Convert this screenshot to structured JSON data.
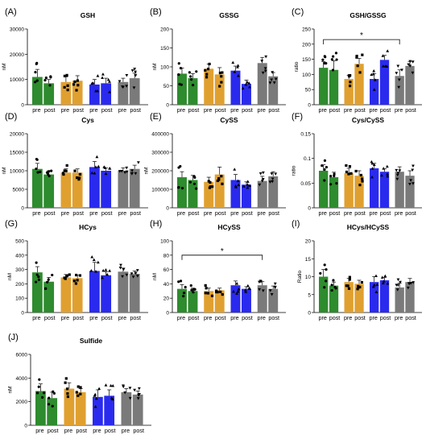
{
  "colors": {
    "green": "#2e8b2e",
    "orange": "#e0a030",
    "blue": "#2a2aee",
    "gray": "#7a7a7a",
    "point": "#000000"
  },
  "chart_data": [
    {
      "letter": "(A)",
      "type": "bar",
      "title": "GSH",
      "ylabel": "nM",
      "ylim": [
        0,
        30000
      ],
      "yticks": [
        0,
        10000,
        20000,
        30000
      ],
      "categories": [
        "pre",
        "post",
        "pre",
        "post",
        "pre",
        "post",
        "pre",
        "post"
      ],
      "values": [
        11000,
        8500,
        9000,
        9500,
        8000,
        8500,
        9000,
        10500
      ],
      "errors": [
        3000,
        1500,
        2000,
        2000,
        2000,
        2000,
        1500,
        2000
      ],
      "significance": null
    },
    {
      "letter": "(B)",
      "type": "bar",
      "title": "GSSG",
      "ylabel": "nM",
      "ylim": [
        0,
        200
      ],
      "yticks": [
        0,
        50,
        100,
        150,
        200
      ],
      "categories": [
        "pre",
        "post",
        "pre",
        "post",
        "pre",
        "post",
        "pre",
        "post"
      ],
      "values": [
        82,
        70,
        95,
        80,
        90,
        55,
        110,
        75
      ],
      "errors": [
        15,
        12,
        12,
        18,
        12,
        10,
        15,
        10
      ],
      "significance": null
    },
    {
      "letter": "(C)",
      "type": "bar",
      "title": "GSH/GSSG",
      "ylabel": "ratio",
      "ylim": [
        0,
        250
      ],
      "yticks": [
        0,
        50,
        100,
        150,
        200,
        250
      ],
      "categories": [
        "pre",
        "post",
        "pre",
        "post",
        "pre",
        "post",
        "pre",
        "post"
      ],
      "values": [
        122,
        115,
        85,
        135,
        85,
        148,
        95,
        128
      ],
      "errors": [
        20,
        30,
        12,
        18,
        18,
        15,
        20,
        15
      ],
      "significance": {
        "from": 0,
        "to": 6,
        "label": "*",
        "y": 215
      }
    },
    {
      "letter": "(D)",
      "type": "bar",
      "title": "Cys",
      "ylabel": "nM",
      "ylim": [
        0,
        20000
      ],
      "yticks": [
        0,
        5000,
        10000,
        15000,
        20000
      ],
      "categories": [
        "pre",
        "post",
        "pre",
        "post",
        "pre",
        "post",
        "pre",
        "post"
      ],
      "values": [
        10500,
        9000,
        9500,
        9500,
        11000,
        10000,
        10000,
        10500
      ],
      "errors": [
        1500,
        1000,
        1000,
        1000,
        1500,
        800,
        800,
        1000
      ],
      "significance": null
    },
    {
      "letter": "(E)",
      "type": "bar",
      "title": "CySS",
      "ylabel": "nM",
      "ylim": [
        0,
        400000
      ],
      "yticks": [
        0,
        100000,
        200000,
        300000,
        400000
      ],
      "categories": [
        "pre",
        "post",
        "pre",
        "post",
        "pre",
        "post",
        "pre",
        "post"
      ],
      "values": [
        165000,
        150000,
        140000,
        180000,
        150000,
        125000,
        145000,
        170000
      ],
      "errors": [
        30000,
        25000,
        25000,
        40000,
        30000,
        15000,
        25000,
        25000
      ],
      "significance": null
    },
    {
      "letter": "(F)",
      "type": "bar",
      "title": "Cys/CySS",
      "ylabel": "ratio",
      "ylim": [
        0,
        0.15
      ],
      "yticks": [
        0.0,
        0.05,
        0.1,
        0.15
      ],
      "categories": [
        "pre",
        "post",
        "pre",
        "post",
        "pre",
        "post",
        "pre",
        "post"
      ],
      "values": [
        0.075,
        0.062,
        0.07,
        0.065,
        0.08,
        0.073,
        0.073,
        0.065
      ],
      "errors": [
        0.012,
        0.01,
        0.01,
        0.01,
        0.01,
        0.006,
        0.01,
        0.01
      ],
      "significance": null
    },
    {
      "letter": "(G)",
      "type": "bar",
      "title": "HCys",
      "ylabel": "nM",
      "ylim": [
        0,
        500
      ],
      "yticks": [
        0,
        100,
        200,
        300,
        400,
        500
      ],
      "categories": [
        "pre",
        "post",
        "pre",
        "post",
        "pre",
        "post",
        "pre",
        "post"
      ],
      "values": [
        280,
        215,
        245,
        240,
        290,
        260,
        285,
        270
      ],
      "errors": [
        40,
        30,
        20,
        20,
        60,
        25,
        25,
        20
      ],
      "significance": null
    },
    {
      "letter": "(H)",
      "type": "bar",
      "title": "HCySS",
      "ylabel": "nM",
      "ylim": [
        0,
        100
      ],
      "yticks": [
        0,
        20,
        40,
        60,
        80,
        100
      ],
      "categories": [
        "pre",
        "post",
        "pre",
        "post",
        "pre",
        "post",
        "pre",
        "post"
      ],
      "values": [
        33,
        30,
        30,
        31,
        38,
        33,
        38,
        33
      ],
      "errors": [
        6,
        4,
        4,
        3,
        6,
        3,
        5,
        4
      ],
      "significance": {
        "from": 0,
        "to": 6,
        "label": "*",
        "y": 80
      }
    },
    {
      "letter": "(I)",
      "type": "bar",
      "title": "HCys/HCySS",
      "ylabel": "Ratio",
      "ylim": [
        0,
        20
      ],
      "yticks": [
        0,
        5,
        10,
        15,
        20
      ],
      "categories": [
        "pre",
        "post",
        "pre",
        "post",
        "pre",
        "post",
        "pre",
        "post"
      ],
      "values": [
        10,
        7.5,
        8.5,
        8,
        8.5,
        9,
        7,
        8.5
      ],
      "errors": [
        2,
        1,
        1,
        1,
        1.5,
        0.8,
        1.2,
        1
      ],
      "significance": null
    },
    {
      "letter": "(J)",
      "type": "bar",
      "title": "Sulfide",
      "ylabel": "nM",
      "ylim": [
        0,
        6000
      ],
      "yticks": [
        0,
        2000,
        4000,
        6000
      ],
      "categories": [
        "pre",
        "post",
        "pre",
        "post",
        "pre",
        "post",
        "pre",
        "post"
      ],
      "values": [
        2900,
        2300,
        3100,
        2800,
        2400,
        2500,
        2800,
        2600
      ],
      "errors": [
        600,
        500,
        500,
        300,
        600,
        500,
        300,
        300
      ],
      "significance": null
    }
  ]
}
